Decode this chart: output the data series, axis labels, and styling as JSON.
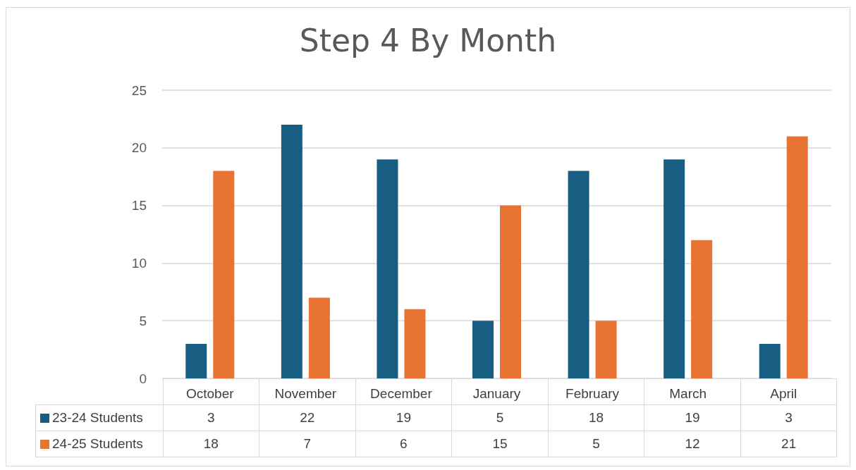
{
  "chart_data": {
    "type": "bar",
    "title": "Step 4 By Month",
    "categories": [
      "October",
      "November",
      "December",
      "January",
      "February",
      "March",
      "April"
    ],
    "series": [
      {
        "name": "23-24 Students",
        "color": "#175e82",
        "values": [
          3,
          22,
          19,
          5,
          18,
          19,
          3
        ]
      },
      {
        "name": "24-25 Students",
        "color": "#e87332",
        "values": [
          18,
          7,
          6,
          15,
          5,
          12,
          21
        ]
      }
    ],
    "ylim": [
      0,
      25
    ],
    "yticks": [
      0,
      5,
      10,
      15,
      20,
      25
    ],
    "grid": "y",
    "legend": "bottom",
    "data_labels": true
  }
}
